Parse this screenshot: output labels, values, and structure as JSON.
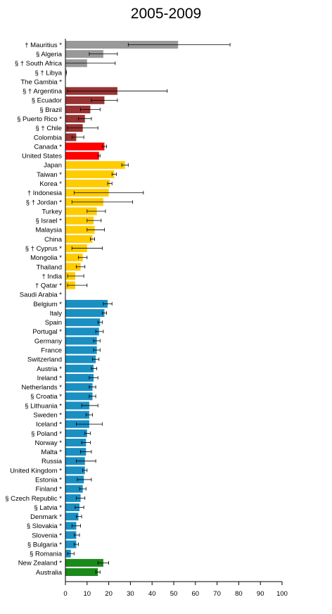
{
  "chart_data": {
    "type": "bar",
    "orientation": "horizontal",
    "title": "2005-2009",
    "xlim": [
      0,
      100
    ],
    "x_ticks": [
      "0",
      "10",
      "20",
      "30",
      "40",
      "50",
      "60",
      "70",
      "80",
      "90",
      "100"
    ],
    "grid": false,
    "legend": "none",
    "bars": [
      {
        "label": "† Mauritius *",
        "value": 52,
        "err_low": 29,
        "err_high": 76,
        "color": "#999999"
      },
      {
        "label": "§ Algeria",
        "value": 17.5,
        "err_low": 11,
        "err_high": 24,
        "color": "#999999"
      },
      {
        "label": "§ † South Africa",
        "value": 10,
        "err_low": 0,
        "err_high": 23,
        "color": "#999999"
      },
      {
        "label": "§ † Libya",
        "value": 0.5,
        "err_low": 0,
        "err_high": 0.5,
        "color": "#999999"
      },
      {
        "label": "The Gambia *",
        "value": null,
        "err_low": null,
        "err_high": null,
        "color": "#999999"
      },
      {
        "label": "§ † Argentina",
        "value": 24,
        "err_low": 1,
        "err_high": 47,
        "color": "#993333"
      },
      {
        "label": "§ Ecuador",
        "value": 18,
        "err_low": 12,
        "err_high": 24,
        "color": "#993333"
      },
      {
        "label": "§ Brazil",
        "value": 11.5,
        "err_low": 7,
        "err_high": 16,
        "color": "#993333"
      },
      {
        "label": "§ Puerto Rico *",
        "value": 9,
        "err_low": 6,
        "err_high": 12,
        "color": "#993333"
      },
      {
        "label": "§ † Chile",
        "value": 8,
        "err_low": 1,
        "err_high": 15,
        "color": "#993333"
      },
      {
        "label": "Colombia",
        "value": 5,
        "err_low": 3,
        "err_high": 8.5,
        "color": "#993333"
      },
      {
        "label": "Canada *",
        "value": 18,
        "err_low": 17,
        "err_high": 19,
        "color": "#ff0000"
      },
      {
        "label": "United States",
        "value": 15.5,
        "err_low": 15,
        "err_high": 16,
        "color": "#ff0000"
      },
      {
        "label": "Japan",
        "value": 27.5,
        "err_low": 26,
        "err_high": 29,
        "color": "#ffcc00"
      },
      {
        "label": "Taiwan *",
        "value": 22.5,
        "err_low": 21.5,
        "err_high": 23.5,
        "color": "#ffcc00"
      },
      {
        "label": "Korea *",
        "value": 20.5,
        "err_low": 19.5,
        "err_high": 21.5,
        "color": "#ffcc00"
      },
      {
        "label": "† Indonesia",
        "value": 20,
        "err_low": 4,
        "err_high": 36,
        "color": "#ffcc00"
      },
      {
        "label": "§ † Jordan *",
        "value": 17.5,
        "err_low": 3,
        "err_high": 31,
        "color": "#ffcc00"
      },
      {
        "label": "Turkey",
        "value": 14.5,
        "err_low": 10,
        "err_high": 18.5,
        "color": "#ffcc00"
      },
      {
        "label": "§ Israel *",
        "value": 13,
        "err_low": 10,
        "err_high": 16.5,
        "color": "#ffcc00"
      },
      {
        "label": "Malaysia",
        "value": 13.5,
        "err_low": 10,
        "err_high": 18,
        "color": "#ffcc00"
      },
      {
        "label": "China",
        "value": 12.5,
        "err_low": 11.5,
        "err_high": 13.5,
        "color": "#ffcc00"
      },
      {
        "label": "§ † Cyprus *",
        "value": 10,
        "err_low": 3,
        "err_high": 17,
        "color": "#ffcc00"
      },
      {
        "label": "Mongolia *",
        "value": 8,
        "err_low": 6,
        "err_high": 10,
        "color": "#ffcc00"
      },
      {
        "label": "Thailand",
        "value": 7,
        "err_low": 5,
        "err_high": 9,
        "color": "#ffcc00"
      },
      {
        "label": "† India",
        "value": 4.5,
        "err_low": 1,
        "err_high": 8.5,
        "color": "#ffcc00"
      },
      {
        "label": "† Qatar *",
        "value": 4.5,
        "err_low": 1,
        "err_high": 10,
        "color": "#ffcc00"
      },
      {
        "label": "Saudi Arabia *",
        "value": null,
        "err_low": null,
        "err_high": null,
        "color": "#ffcc00"
      },
      {
        "label": "Belgium *",
        "value": 19.5,
        "err_low": 17.5,
        "err_high": 21.5,
        "color": "#1a8fc2"
      },
      {
        "label": "Italy",
        "value": 18,
        "err_low": 17,
        "err_high": 19,
        "color": "#1a8fc2"
      },
      {
        "label": "Spain",
        "value": 16,
        "err_low": 15,
        "err_high": 17,
        "color": "#1a8fc2"
      },
      {
        "label": "Portugal *",
        "value": 15.5,
        "err_low": 14,
        "err_high": 17.5,
        "color": "#1a8fc2"
      },
      {
        "label": "Germany",
        "value": 14.5,
        "err_low": 13,
        "err_high": 16,
        "color": "#1a8fc2"
      },
      {
        "label": "France",
        "value": 14.5,
        "err_low": 13,
        "err_high": 16,
        "color": "#1a8fc2"
      },
      {
        "label": "Switzerland",
        "value": 14,
        "err_low": 12.5,
        "err_high": 15.5,
        "color": "#1a8fc2"
      },
      {
        "label": "Austria *",
        "value": 13,
        "err_low": 12,
        "err_high": 14.5,
        "color": "#1a8fc2"
      },
      {
        "label": "Ireland *",
        "value": 13,
        "err_low": 11,
        "err_high": 15,
        "color": "#1a8fc2"
      },
      {
        "label": "Netherlands *",
        "value": 12.5,
        "err_low": 11,
        "err_high": 14,
        "color": "#1a8fc2"
      },
      {
        "label": "§ Croatia *",
        "value": 12.5,
        "err_low": 11,
        "err_high": 14,
        "color": "#1a8fc2"
      },
      {
        "label": "§ Lithuania *",
        "value": 11,
        "err_low": 7.5,
        "err_high": 15,
        "color": "#1a8fc2"
      },
      {
        "label": "Sweden *",
        "value": 11,
        "err_low": 9.5,
        "err_high": 12.5,
        "color": "#1a8fc2"
      },
      {
        "label": "Iceland *",
        "value": 11,
        "err_low": 5,
        "err_high": 17,
        "color": "#1a8fc2"
      },
      {
        "label": "§ Poland *",
        "value": 10,
        "err_low": 9,
        "err_high": 11.5,
        "color": "#1a8fc2"
      },
      {
        "label": "Norway *",
        "value": 9.5,
        "err_low": 7.5,
        "err_high": 11.5,
        "color": "#1a8fc2"
      },
      {
        "label": "Malta *",
        "value": 9.5,
        "err_low": 7,
        "err_high": 12,
        "color": "#1a8fc2"
      },
      {
        "label": "Russia",
        "value": 9,
        "err_low": 5,
        "err_high": 14,
        "color": "#1a8fc2"
      },
      {
        "label": "United Kingdom *",
        "value": 9,
        "err_low": 8,
        "err_high": 10,
        "color": "#1a8fc2"
      },
      {
        "label": "Estonia *",
        "value": 8.5,
        "err_low": 5.5,
        "err_high": 12,
        "color": "#1a8fc2"
      },
      {
        "label": "Finland *",
        "value": 8,
        "err_low": 6.5,
        "err_high": 9.5,
        "color": "#1a8fc2"
      },
      {
        "label": "§ Czech Republic *",
        "value": 7,
        "err_low": 5,
        "err_high": 9,
        "color": "#1a8fc2"
      },
      {
        "label": "§ Latvia *",
        "value": 6.5,
        "err_low": 4.5,
        "err_high": 8.5,
        "color": "#1a8fc2"
      },
      {
        "label": "Denmark *",
        "value": 6,
        "err_low": 5,
        "err_high": 7.5,
        "color": "#1a8fc2"
      },
      {
        "label": "§ Slovakia *",
        "value": 5,
        "err_low": 3,
        "err_high": 7,
        "color": "#1a8fc2"
      },
      {
        "label": "Slovenia *",
        "value": 5,
        "err_low": 4,
        "err_high": 6.5,
        "color": "#1a8fc2"
      },
      {
        "label": "§ Bulgaria *",
        "value": 5,
        "err_low": 4,
        "err_high": 6,
        "color": "#1a8fc2"
      },
      {
        "label": "§ Romania",
        "value": 2.5,
        "err_low": 1,
        "err_high": 4,
        "color": "#1a8fc2"
      },
      {
        "label": "New Zealand *",
        "value": 17.5,
        "err_low": 15,
        "err_high": 20,
        "color": "#1a8a1a"
      },
      {
        "label": "Australia",
        "value": 15,
        "err_low": 14,
        "err_high": 16,
        "color": "#1a8a1a"
      }
    ]
  }
}
